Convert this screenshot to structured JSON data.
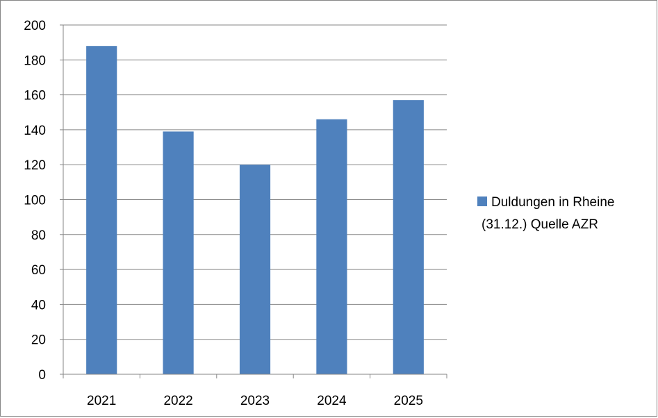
{
  "chart_data": {
    "type": "bar",
    "title": "",
    "xlabel": "",
    "ylabel": "",
    "categories": [
      "2021",
      "2022",
      "2023",
      "2024",
      "2025"
    ],
    "series": [
      {
        "name": "Duldungen in Rheine (31.12.) Quelle AZR",
        "values": [
          188,
          139,
          120,
          146,
          157
        ],
        "color": "#4F81BD"
      }
    ],
    "ylim": [
      0,
      200
    ],
    "y_ticks": [
      0,
      20,
      40,
      60,
      80,
      100,
      120,
      140,
      160,
      180,
      200
    ],
    "grid": true,
    "legend_position": "right"
  },
  "legend": {
    "line1": "Duldungen in Rheine",
    "line2": "(31.12.) Quelle AZR"
  }
}
